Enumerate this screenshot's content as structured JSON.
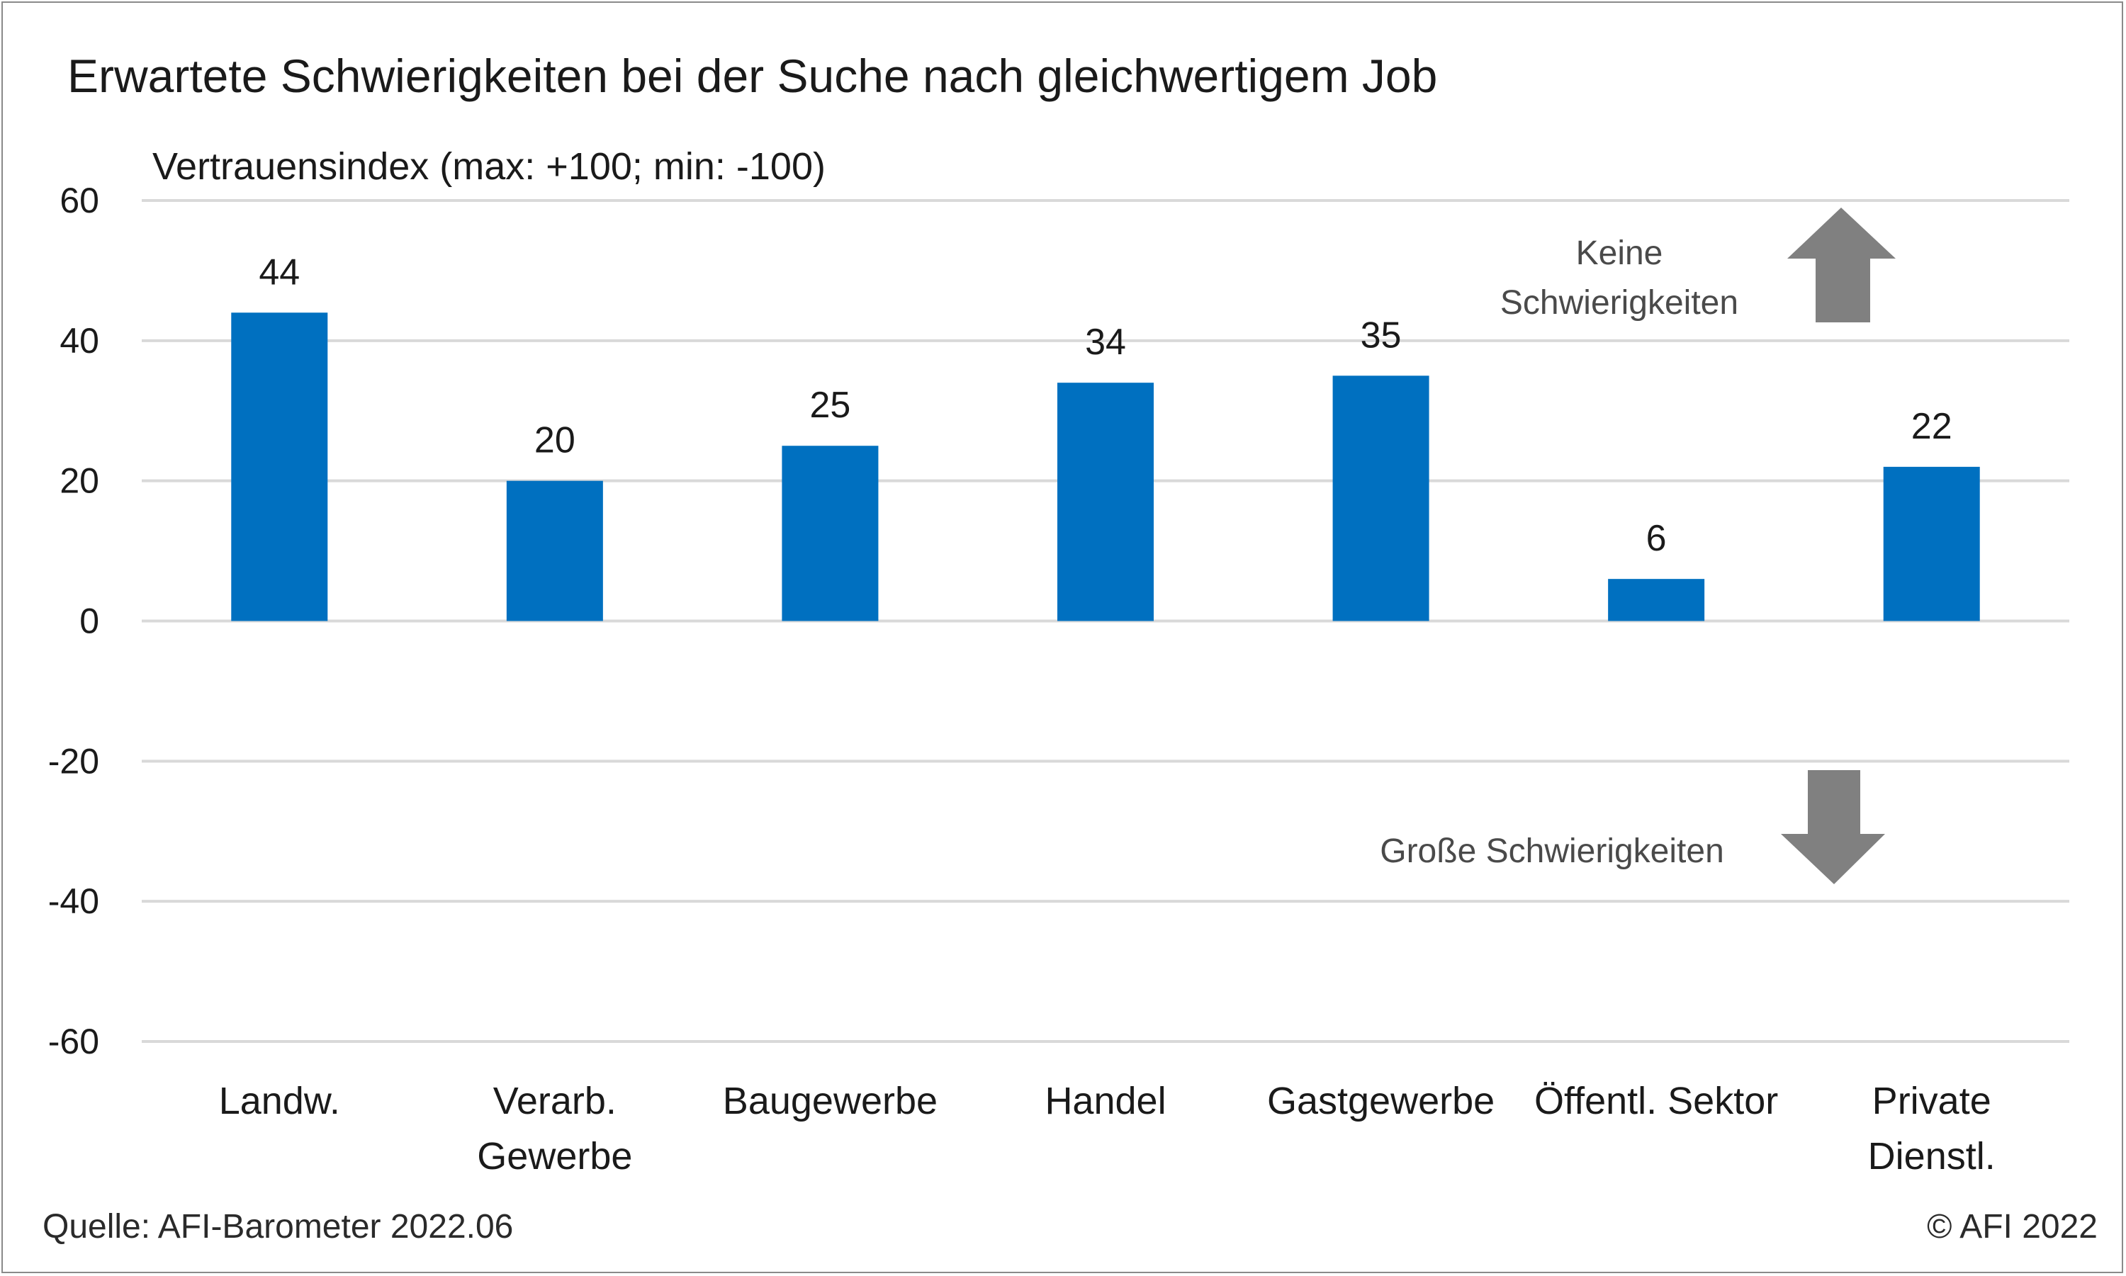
{
  "chart_data": {
    "type": "bar",
    "title": "Erwartete Schwierigkeiten bei der Suche nach gleichwertigem Job",
    "ylabel": "Vertrauensindex (max: +100; min: -100)",
    "categories": [
      [
        "Landw."
      ],
      [
        "Verarb.",
        "Gewerbe"
      ],
      [
        "Baugewerbe"
      ],
      [
        "Handel"
      ],
      [
        "Gastgewerbe"
      ],
      [
        "Öffentl. Sektor"
      ],
      [
        "Private",
        "Dienstl."
      ]
    ],
    "values": [
      44,
      20,
      25,
      34,
      35,
      6,
      22
    ],
    "ylim": [
      -60,
      60
    ],
    "yticks": [
      "60",
      "40",
      "20",
      "0",
      "-20",
      "-40",
      "-60"
    ],
    "grid": true,
    "bar_color": "#0070C0",
    "arrow_color": "#808080",
    "annotations": {
      "up_lines": [
        "Keine",
        "Schwierigkeiten"
      ],
      "down": "Große Schwierigkeiten"
    }
  },
  "footer": {
    "source": "Quelle: AFI-Barometer 2022.06",
    "copyright": "© AFI 2022"
  }
}
